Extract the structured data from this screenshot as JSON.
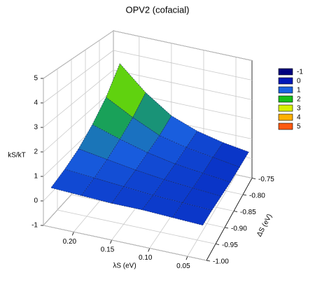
{
  "chart_data": {
    "type": "surface",
    "title": "OPV2 (cofacial)",
    "xlabel": "λS (eV)",
    "ylabel": "ΔS (eV)",
    "zlabel": "kS/kT",
    "x": [
      0.03,
      0.07,
      0.11,
      0.15,
      0.19,
      0.23
    ],
    "y": [
      -1.0,
      -0.95,
      -0.9,
      -0.85,
      -0.8,
      -0.75
    ],
    "z": [
      [
        0.4,
        0.45,
        0.5,
        0.5,
        0.55,
        0.6
      ],
      [
        0.4,
        0.45,
        0.5,
        0.6,
        0.7,
        0.8
      ],
      [
        0.35,
        0.45,
        0.55,
        0.7,
        0.9,
        1.1
      ],
      [
        0.3,
        0.45,
        0.6,
        0.85,
        1.2,
        1.6
      ],
      [
        0.3,
        0.5,
        0.7,
        1.0,
        1.6,
        2.3
      ],
      [
        0.3,
        0.5,
        0.8,
        1.3,
        2.2,
        3.4
      ]
    ],
    "xlim": [
      0.025,
      0.24
    ],
    "ylim": [
      -1.0,
      -0.75
    ],
    "zlim": [
      -1,
      5
    ],
    "xticks": [
      {
        "value": 0.2,
        "label": "0.20"
      },
      {
        "value": 0.15,
        "label": "0.15"
      },
      {
        "value": 0.1,
        "label": "0.10"
      },
      {
        "value": 0.05,
        "label": "0.05"
      }
    ],
    "yticks": [
      {
        "value": -1.0,
        "label": "-1.00"
      },
      {
        "value": -0.95,
        "label": "-0.95"
      },
      {
        "value": -0.9,
        "label": "-0.90"
      },
      {
        "value": -0.85,
        "label": "-0.85"
      },
      {
        "value": -0.8,
        "label": "-0.80"
      },
      {
        "value": -0.75,
        "label": "-0.75"
      }
    ],
    "zticks": [
      -1,
      0,
      1,
      2,
      3,
      4,
      5
    ],
    "colorbar": {
      "levels": [
        -1,
        0,
        1,
        2,
        3,
        4,
        5
      ],
      "colors": [
        "#000080",
        "#0018b8",
        "#1a62e0",
        "#18c018",
        "#d8f000",
        "#ffb000",
        "#ff5a10"
      ]
    },
    "grid": true
  }
}
